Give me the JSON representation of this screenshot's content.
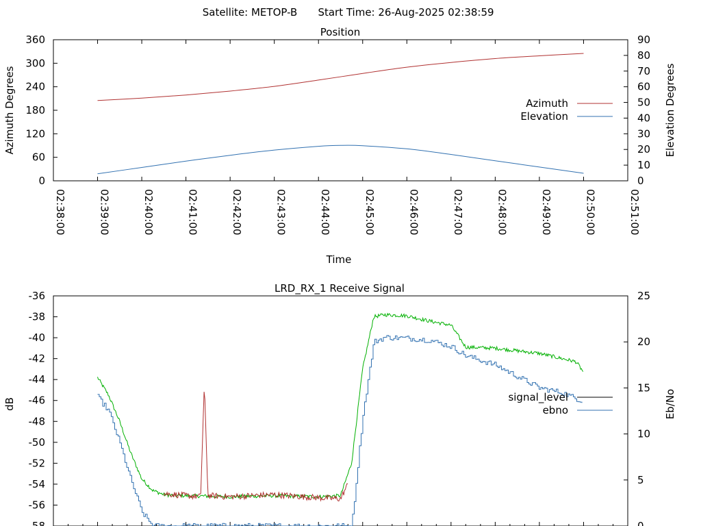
{
  "header": {
    "satellite_label": "Satellite: METOP-B",
    "start_label": "Start Time: 26-Aug-2025 02:38:59"
  },
  "chart_data": [
    {
      "type": "line",
      "title": "Position",
      "xlabel": "Time",
      "ylabel": "Azimuth Degrees",
      "y2label": "Elevation Degrees",
      "x_ticks": [
        "02:38:00",
        "02:39:00",
        "02:40:00",
        "02:41:00",
        "02:42:00",
        "02:43:00",
        "02:44:00",
        "02:45:00",
        "02:46:00",
        "02:47:00",
        "02:48:00",
        "02:49:00",
        "02:50:00",
        "02:51:00"
      ],
      "xlim": [
        "02:38:00",
        "02:51:00"
      ],
      "ylim": [
        0,
        360
      ],
      "y_ticks": [
        0,
        60,
        120,
        180,
        240,
        300,
        360
      ],
      "y2lim": [
        0,
        90
      ],
      "y2_ticks": [
        0,
        10,
        20,
        30,
        40,
        50,
        60,
        70,
        80,
        90
      ],
      "legend_position": "right",
      "series": [
        {
          "name": "Azimuth",
          "axis": "y",
          "color": "#b03030",
          "x": [
            "02:39:00",
            "02:40:00",
            "02:41:00",
            "02:42:00",
            "02:43:00",
            "02:44:00",
            "02:45:00",
            "02:46:00",
            "02:47:00",
            "02:48:00",
            "02:49:00",
            "02:50:00"
          ],
          "values": [
            205,
            211,
            219,
            229,
            241,
            257,
            274,
            290,
            302,
            312,
            319,
            325
          ]
        },
        {
          "name": "Elevation",
          "axis": "y2",
          "color": "#3070b0",
          "x": [
            "02:39:00",
            "02:40:00",
            "02:41:00",
            "02:42:00",
            "02:43:00",
            "02:44:00",
            "02:44:30",
            "02:45:00",
            "02:46:00",
            "02:47:00",
            "02:48:00",
            "02:49:00",
            "02:50:00"
          ],
          "values": [
            4.5,
            8.5,
            12.6,
            16.3,
            19.6,
            22,
            22.6,
            22.4,
            20.4,
            16.8,
            12.8,
            8.8,
            4.8
          ]
        }
      ]
    },
    {
      "type": "line",
      "title": "LRD_RX_1 Receive Signal",
      "xlabel": "",
      "ylabel": "dB",
      "y2label": "Eb/No",
      "ylim": [
        -58,
        -36
      ],
      "y_ticks": [
        -58,
        -56,
        -54,
        -52,
        -50,
        -48,
        -46,
        -44,
        -42,
        -40,
        -38,
        -36
      ],
      "y2lim": [
        0,
        25
      ],
      "y2_ticks": [
        0,
        5,
        10,
        15,
        20,
        25
      ],
      "legend_position": "right",
      "series": [
        {
          "name": "signal_level",
          "axis": "y",
          "color": "#00b000",
          "x": [
            "02:39:00",
            "02:39:15",
            "02:39:30",
            "02:39:45",
            "02:40:00",
            "02:40:15",
            "02:40:30",
            "02:40:45",
            "02:41:00",
            "02:42:00",
            "02:43:00",
            "02:44:00",
            "02:44:30",
            "02:44:45",
            "02:45:00",
            "02:45:15",
            "02:45:30",
            "02:46:00",
            "02:46:30",
            "02:47:00",
            "02:47:20",
            "02:48:00",
            "02:49:00",
            "02:49:50",
            "02:50:00"
          ],
          "values": [
            -43.8,
            -45.5,
            -48,
            -51,
            -53.5,
            -54.6,
            -55,
            -55.1,
            -55.1,
            -55.2,
            -55.1,
            -55.2,
            -55.1,
            -52,
            -43,
            -38,
            -37.8,
            -37.9,
            -38.4,
            -38.8,
            -40.9,
            -41.0,
            -41.5,
            -42.3,
            -43.3
          ]
        },
        {
          "name": "ebno",
          "axis": "y2",
          "color": "#3070b0",
          "x": [
            "02:39:00",
            "02:39:15",
            "02:39:30",
            "02:39:45",
            "02:40:00",
            "02:40:15",
            "02:44:45",
            "02:45:00",
            "02:45:15",
            "02:45:30",
            "02:46:00",
            "02:46:30",
            "02:47:00",
            "02:47:20",
            "02:48:00",
            "02:49:00",
            "02:49:30",
            "02:50:00"
          ],
          "values": [
            14,
            12.5,
            9,
            5,
            1.5,
            0,
            0,
            12,
            20,
            20.5,
            20.4,
            20.2,
            19.5,
            18.5,
            17.5,
            15,
            14.5,
            13.5
          ]
        },
        {
          "name": "",
          "axis": "y",
          "color": "#b03030",
          "x": [
            "02:40:30",
            "02:41:00",
            "02:41:20",
            "02:41:25",
            "02:41:30",
            "02:42:00",
            "02:43:00",
            "02:44:00",
            "02:44:30",
            "02:44:40"
          ],
          "values": [
            -54.9,
            -55.1,
            -55.2,
            -44.5,
            -55.1,
            -55.2,
            -55.0,
            -55.3,
            -55.4,
            -54.0
          ]
        }
      ]
    }
  ]
}
